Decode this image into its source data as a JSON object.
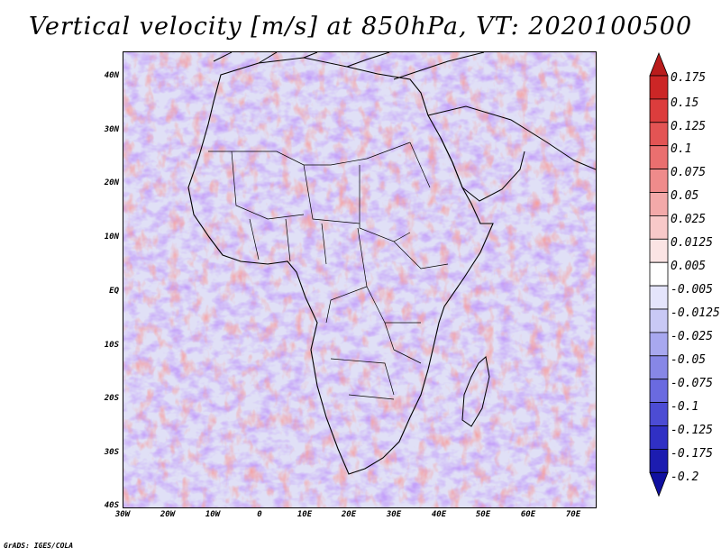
{
  "title": "Vertical velocity [m/s] at 850hPa, VT: 2020100500",
  "footer": "GrADS: IGES/COLA",
  "lat_labels": [
    "40N",
    "30N",
    "20N",
    "10N",
    "EQ",
    "10S",
    "20S",
    "30S",
    "40S"
  ],
  "lon_labels": [
    "30W",
    "20W",
    "10W",
    "0",
    "10E",
    "20E",
    "30E",
    "40E",
    "50E",
    "60E",
    "70E"
  ],
  "colorbar": {
    "labels": [
      "0.175",
      "0.15",
      "0.125",
      "0.1",
      "0.075",
      "0.05",
      "0.025",
      "0.0125",
      "0.005",
      "-0.005",
      "-0.0125",
      "-0.025",
      "-0.05",
      "-0.075",
      "-0.1",
      "-0.125",
      "-0.175",
      "-0.2"
    ],
    "colors": [
      "#b91c1c",
      "#cc2626",
      "#dc3d3d",
      "#e35454",
      "#ea6f6f",
      "#ef8b8b",
      "#f3a9a9",
      "#f8c9c9",
      "#fbe4e4",
      "#ffffff",
      "#e4e4fb",
      "#c9c9f5",
      "#a8a8ef",
      "#8787e6",
      "#6a6ae0",
      "#4c4cd4",
      "#3030c4",
      "#1c1cb0",
      "#1010a0"
    ]
  }
}
